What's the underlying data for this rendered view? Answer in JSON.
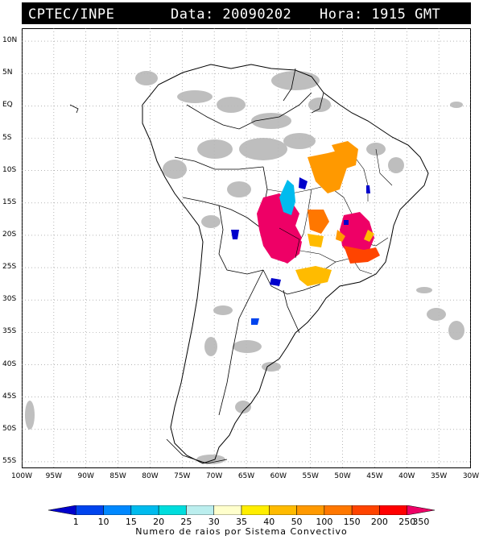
{
  "header": {
    "org": "CPTEC/INPE",
    "date_text": "Data: 20090202",
    "time_text": "Hora: 1915 GMT"
  },
  "axes": {
    "lat_labels": [
      "10N",
      "5N",
      "EQ",
      "5S",
      "10S",
      "15S",
      "20S",
      "25S",
      "30S",
      "35S",
      "40S",
      "45S",
      "50S",
      "55S"
    ],
    "lon_labels": [
      "100W",
      "95W",
      "90W",
      "85W",
      "80W",
      "75W",
      "70W",
      "65W",
      "60W",
      "55W",
      "50W",
      "45W",
      "40W",
      "35W",
      "30W"
    ],
    "lat_range": [
      -56,
      12
    ],
    "lon_range": [
      -100,
      -30
    ]
  },
  "legend": {
    "title": "Numero de raios por Sistema Convectivo",
    "ticks": [
      "1",
      "10",
      "15",
      "20",
      "25",
      "30",
      "35",
      "40",
      "50",
      "100",
      "150",
      "200",
      "250",
      "350"
    ],
    "colors": [
      "#0000cc",
      "#0044ee",
      "#0088ff",
      "#00bbee",
      "#00dddd",
      "#bbeeee",
      "#ffffcc",
      "#ffee00",
      "#ffbb00",
      "#ff9900",
      "#ff7700",
      "#ff4400",
      "#ff0000",
      "#ee0066"
    ]
  },
  "colors": {
    "cloud": "#b8b8b8",
    "coast": "#000000"
  }
}
